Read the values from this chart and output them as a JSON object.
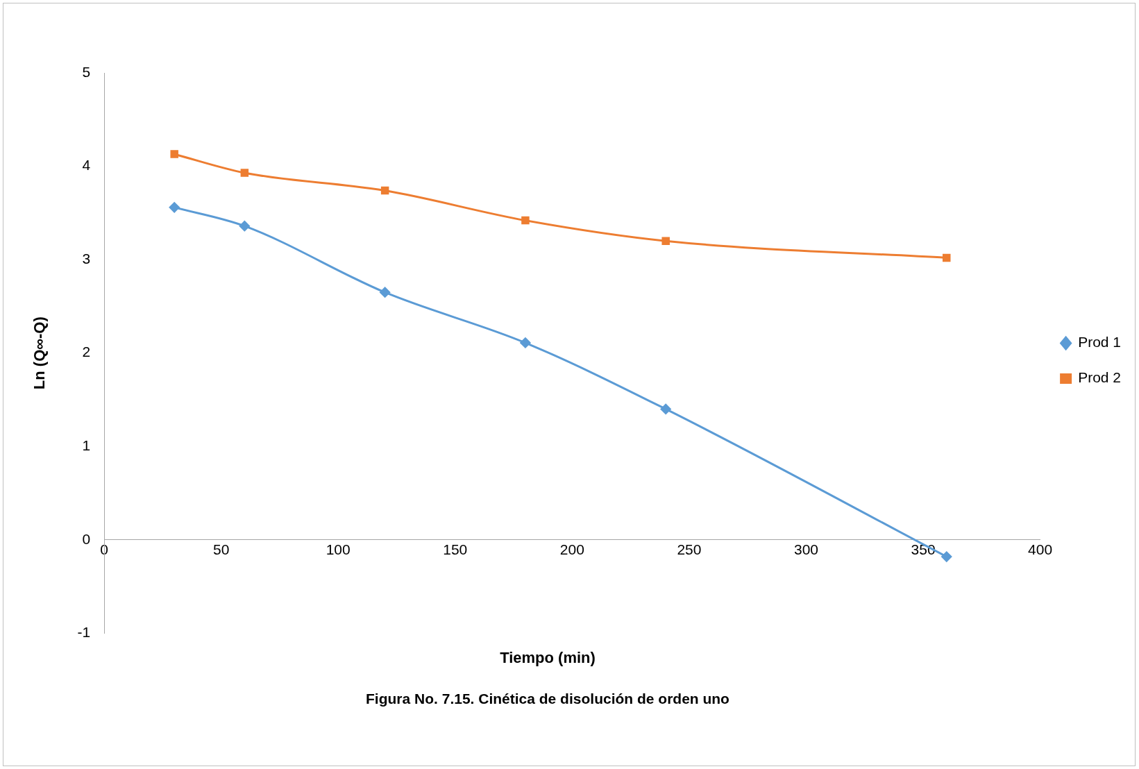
{
  "chart_data": {
    "type": "line",
    "xlabel": "Tiempo (min)",
    "ylabel": "Ln (Q∞-Q)",
    "annotations": [
      "Figura No. 7.15. Cinética de disolución de orden uno"
    ],
    "x": [
      30,
      60,
      120,
      180,
      240,
      360
    ],
    "series": [
      {
        "name": "Prod 1",
        "color": "#5b9bd5",
        "marker": "diamond",
        "values": [
          3.56,
          3.36,
          2.65,
          2.11,
          1.4,
          -0.18
        ]
      },
      {
        "name": "Prod 2",
        "color": "#ed7d31",
        "marker": "square",
        "values": [
          4.13,
          3.93,
          3.74,
          3.42,
          3.2,
          3.02
        ]
      }
    ],
    "xlim": [
      0,
      400
    ],
    "xticks": [
      0,
      50,
      100,
      150,
      200,
      250,
      300,
      350,
      400
    ],
    "ylim": [
      -1,
      5
    ],
    "yticks": [
      -1,
      0,
      1,
      2,
      3,
      4,
      5
    ],
    "grid": false,
    "legend": "right"
  }
}
